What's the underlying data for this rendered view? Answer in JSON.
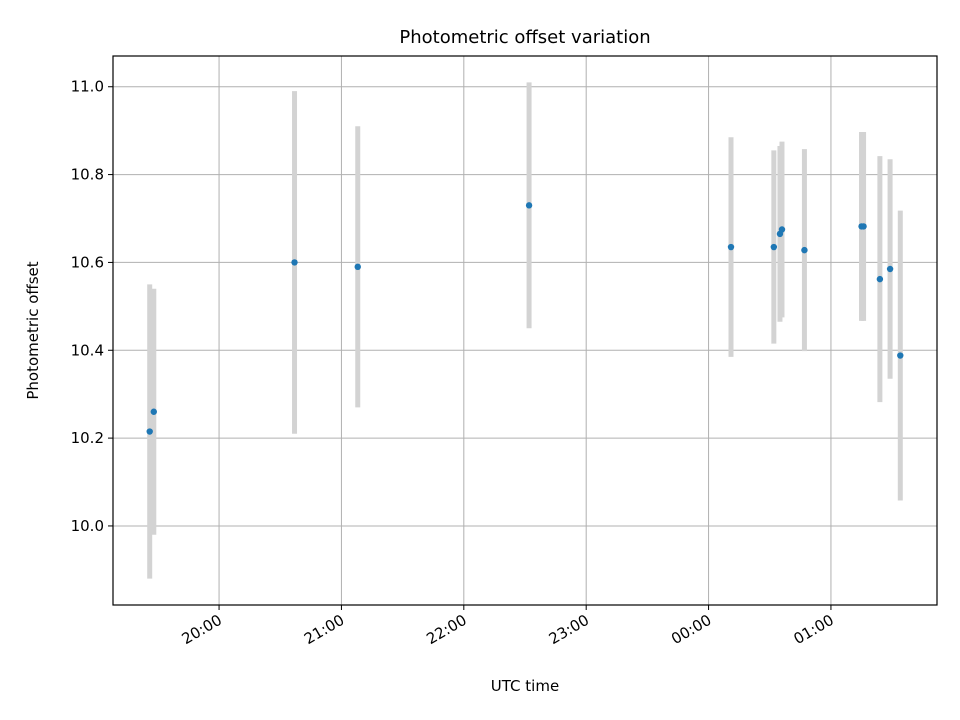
{
  "chart_data": {
    "type": "scatter",
    "title": "Photometric offset variation",
    "xlabel": "UTC time",
    "ylabel": "Photometric offset",
    "x_axis_type": "time",
    "x_ticks": [
      "20:00",
      "21:00",
      "22:00",
      "23:00",
      "00:00",
      "01:00"
    ],
    "xlim": [
      "19:08",
      "01:52"
    ],
    "y_ticks": [
      "10.0",
      "10.2",
      "10.4",
      "10.6",
      "10.8",
      "11.0"
    ],
    "ylim": [
      9.82,
      11.07
    ],
    "grid": true,
    "colors": {
      "point": "#1f77b4",
      "errorbar": "#d3d3d3",
      "grid": "#b0b0b0"
    },
    "series": [
      {
        "points": [
          {
            "t": "19:26",
            "y": 10.215,
            "err": 0.335
          },
          {
            "t": "19:28",
            "y": 10.26,
            "err": 0.28
          },
          {
            "t": "20:37",
            "y": 10.6,
            "err": 0.39
          },
          {
            "t": "21:08",
            "y": 10.59,
            "err": 0.32
          },
          {
            "t": "22:32",
            "y": 10.73,
            "err": 0.28
          },
          {
            "t": "00:11",
            "y": 10.635,
            "err": 0.25
          },
          {
            "t": "00:32",
            "y": 10.635,
            "err": 0.22
          },
          {
            "t": "00:35",
            "y": 10.665,
            "err": 0.2
          },
          {
            "t": "00:36",
            "y": 10.675,
            "err": 0.2
          },
          {
            "t": "00:47",
            "y": 10.628,
            "err": 0.23
          },
          {
            "t": "01:15",
            "y": 10.682,
            "err": 0.215
          },
          {
            "t": "01:16",
            "y": 10.682,
            "err": 0.215
          },
          {
            "t": "01:24",
            "y": 10.562,
            "err": 0.28
          },
          {
            "t": "01:29",
            "y": 10.585,
            "err": 0.25
          },
          {
            "t": "01:34",
            "y": 10.388,
            "err": 0.33
          }
        ]
      }
    ]
  }
}
